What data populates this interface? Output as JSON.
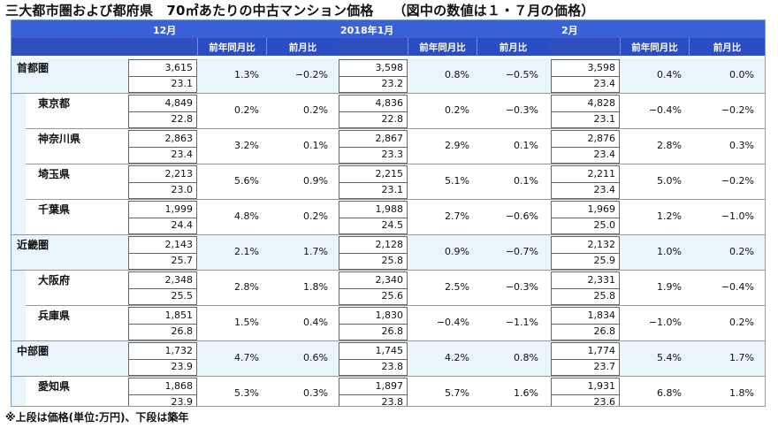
{
  "title": {
    "main": "三大都市圏および都府県　70㎡あたりの中古マンション価格",
    "note": "（図中の数値は１・７月の価格）"
  },
  "headers": {
    "periods": [
      "12月",
      "2018年1月",
      "2月"
    ],
    "yoy": "前年同月比",
    "mom": "前月比"
  },
  "rows": [
    {
      "name": "首都圏",
      "type": "region",
      "cells": [
        [
          "3,615",
          "23.1",
          "1.3%",
          "−0.2%"
        ],
        [
          "3,598",
          "23.2",
          "0.8%",
          "−0.5%"
        ],
        [
          "3,598",
          "23.4",
          "0.4%",
          "0.0%"
        ]
      ]
    },
    {
      "name": "東京都",
      "type": "sub",
      "cells": [
        [
          "4,849",
          "22.8",
          "0.2%",
          "0.2%"
        ],
        [
          "4,836",
          "22.8",
          "0.2%",
          "−0.3%"
        ],
        [
          "4,828",
          "23.1",
          "−0.4%",
          "−0.2%"
        ]
      ]
    },
    {
      "name": "神奈川県",
      "type": "sub",
      "cells": [
        [
          "2,863",
          "23.4",
          "3.2%",
          "0.1%"
        ],
        [
          "2,867",
          "23.3",
          "2.9%",
          "0.1%"
        ],
        [
          "2,876",
          "23.4",
          "2.8%",
          "0.3%"
        ]
      ]
    },
    {
      "name": "埼玉県",
      "type": "sub",
      "cells": [
        [
          "2,213",
          "23.0",
          "5.6%",
          "0.9%"
        ],
        [
          "2,215",
          "23.1",
          "5.1%",
          "0.1%"
        ],
        [
          "2,211",
          "23.4",
          "5.0%",
          "−0.2%"
        ]
      ]
    },
    {
      "name": "千葉県",
      "type": "sub",
      "cells": [
        [
          "1,999",
          "24.4",
          "4.8%",
          "0.2%"
        ],
        [
          "1,988",
          "24.5",
          "2.7%",
          "−0.6%"
        ],
        [
          "1,969",
          "25.0",
          "1.2%",
          "−1.0%"
        ]
      ]
    },
    {
      "name": "近畿圏",
      "type": "region",
      "cells": [
        [
          "2,143",
          "25.7",
          "2.1%",
          "1.7%"
        ],
        [
          "2,128",
          "25.8",
          "0.9%",
          "−0.7%"
        ],
        [
          "2,132",
          "25.9",
          "1.0%",
          "0.2%"
        ]
      ]
    },
    {
      "name": "大阪府",
      "type": "sub",
      "cells": [
        [
          "2,348",
          "25.5",
          "2.8%",
          "1.8%"
        ],
        [
          "2,340",
          "25.6",
          "2.5%",
          "−0.3%"
        ],
        [
          "2,331",
          "25.8",
          "1.9%",
          "−0.4%"
        ]
      ]
    },
    {
      "name": "兵庫県",
      "type": "sub",
      "cells": [
        [
          "1,851",
          "26.8",
          "1.5%",
          "0.4%"
        ],
        [
          "1,830",
          "26.8",
          "−0.4%",
          "−1.1%"
        ],
        [
          "1,834",
          "26.8",
          "−1.0%",
          "0.2%"
        ]
      ]
    },
    {
      "name": "中部圏",
      "type": "region",
      "cells": [
        [
          "1,732",
          "23.9",
          "4.7%",
          "0.6%"
        ],
        [
          "1,745",
          "23.8",
          "4.2%",
          "0.8%"
        ],
        [
          "1,774",
          "23.7",
          "5.4%",
          "1.7%"
        ]
      ]
    },
    {
      "name": "愛知県",
      "type": "sub",
      "cells": [
        [
          "1,868",
          "23.9",
          "5.3%",
          "0.3%"
        ],
        [
          "1,897",
          "23.8",
          "5.7%",
          "1.6%"
        ],
        [
          "1,931",
          "23.6",
          "6.8%",
          "1.8%"
        ]
      ]
    }
  ],
  "footnote": "※上段は価格(単位:万円)、下段は築年",
  "colors": {
    "header": "#3b61d9",
    "header_dark": "#2f4fbf",
    "light_row": "#eaf5fb",
    "border": "#7a9fc9"
  }
}
